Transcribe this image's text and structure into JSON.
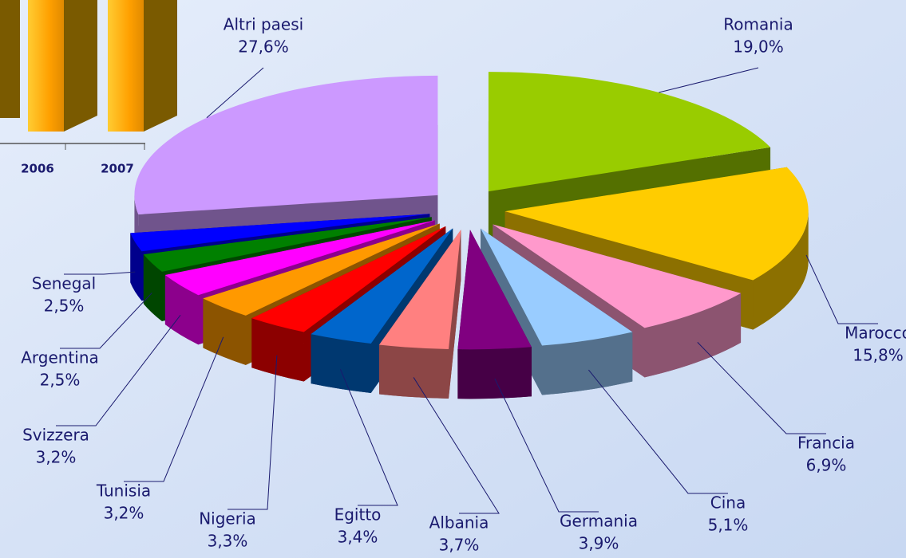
{
  "chart_data": [
    {
      "type": "pie",
      "categories": [
        "Romania",
        "Marocco",
        "Francia",
        "Cina",
        "Germania",
        "Albania",
        "Egitto",
        "Nigeria",
        "Tunisia",
        "Svizzera",
        "Argentina",
        "Senegal",
        "Altri paesi"
      ],
      "values": [
        19.0,
        15.8,
        6.9,
        5.1,
        3.9,
        3.7,
        3.4,
        3.3,
        3.2,
        3.2,
        2.5,
        2.5,
        27.6
      ],
      "value_labels": [
        "19,0%",
        "15,8%",
        "6,9%",
        "5,1%",
        "3,9%",
        "3,7%",
        "3,4%",
        "3,3%",
        "3,2%",
        "3,2%",
        "2,5%",
        "2,5%",
        "27,6%"
      ],
      "colors": [
        "#99cc00",
        "#ffcc00",
        "#ff99cc",
        "#99ccff",
        "#800080",
        "#ff8080",
        "#0066cc",
        "#ff0000",
        "#ff9900",
        "#ff00ff",
        "#008000",
        "#0000ff",
        "#cc99ff"
      ]
    },
    {
      "type": "bar",
      "categories": [
        "2006",
        "2007"
      ]
    }
  ]
}
